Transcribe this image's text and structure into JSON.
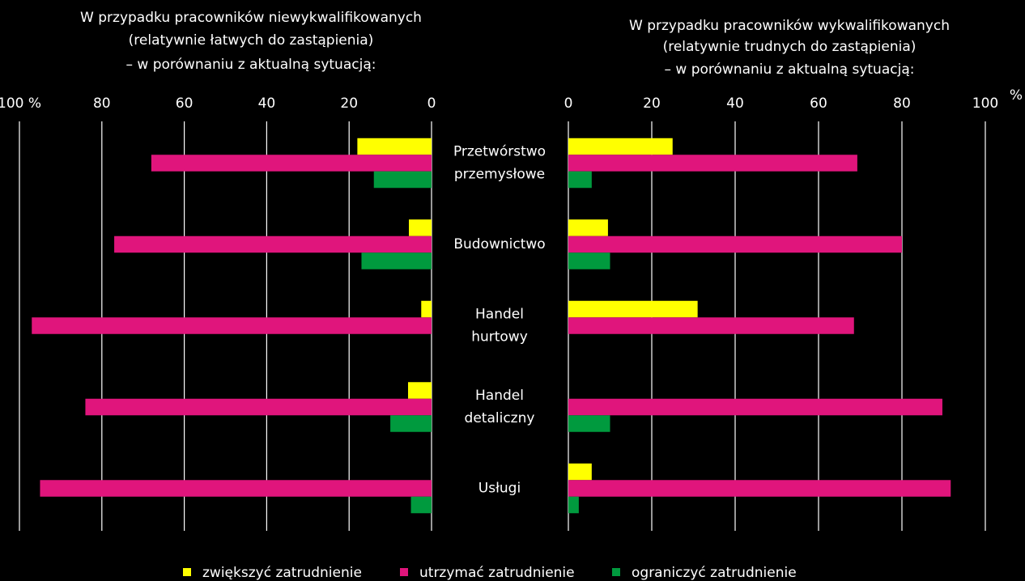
{
  "chart_data": [
    {
      "type": "bar",
      "orientation": "horizontal",
      "x_reversed": true,
      "title": [
        "W przypadku pracowników niewykwalifikowanych",
        "(relatywnie łatwych do zastąpienia)",
        "– w porównaniu z aktualną sytuacją:"
      ],
      "categories": [
        [
          "Przetwórstwo",
          "przemysłowe"
        ],
        [
          "Budownictwo"
        ],
        [
          "Handel",
          "hurtowy"
        ],
        [
          "Handel",
          "detaliczny"
        ],
        [
          "Usługi"
        ]
      ],
      "series": [
        {
          "name": "zwiększyć zatrudnienie",
          "color": "#ffff00",
          "values": [
            18,
            5.5,
            2.5,
            5.7,
            null
          ]
        },
        {
          "name": "utrzymać zatrudnienie",
          "color": "#e0157c",
          "values": [
            68,
            77,
            97,
            84,
            95
          ]
        },
        {
          "name": "ograniczyć zatrudnienie",
          "color": "#009a3e",
          "values": [
            14,
            17,
            null,
            10,
            5
          ]
        }
      ],
      "xlim": [
        0,
        100
      ],
      "xticks": [
        {
          "value": 100,
          "label": "100 %"
        },
        80,
        60,
        40,
        20,
        0
      ],
      "grid": true
    },
    {
      "type": "bar",
      "orientation": "horizontal",
      "title": [
        "W przypadku pracowników wykwalifikowanych",
        "(relatywnie trudnych do zastąpienia)",
        "– w porównaniu z aktualną sytuacją:"
      ],
      "unit": "%",
      "series": [
        {
          "color": "#ffff00",
          "values": [
            25,
            9.5,
            31,
            null,
            5.6
          ]
        },
        {
          "color": "#e0157c",
          "values": [
            69.3,
            80,
            68.5,
            89.7,
            91.7
          ]
        },
        {
          "color": "#009a3e",
          "values": [
            5.6,
            10,
            null,
            10,
            2.5
          ]
        }
      ],
      "xlim": [
        0,
        100
      ],
      "xticks": [
        0,
        20,
        40,
        60,
        80,
        100
      ],
      "grid": true
    }
  ]
}
